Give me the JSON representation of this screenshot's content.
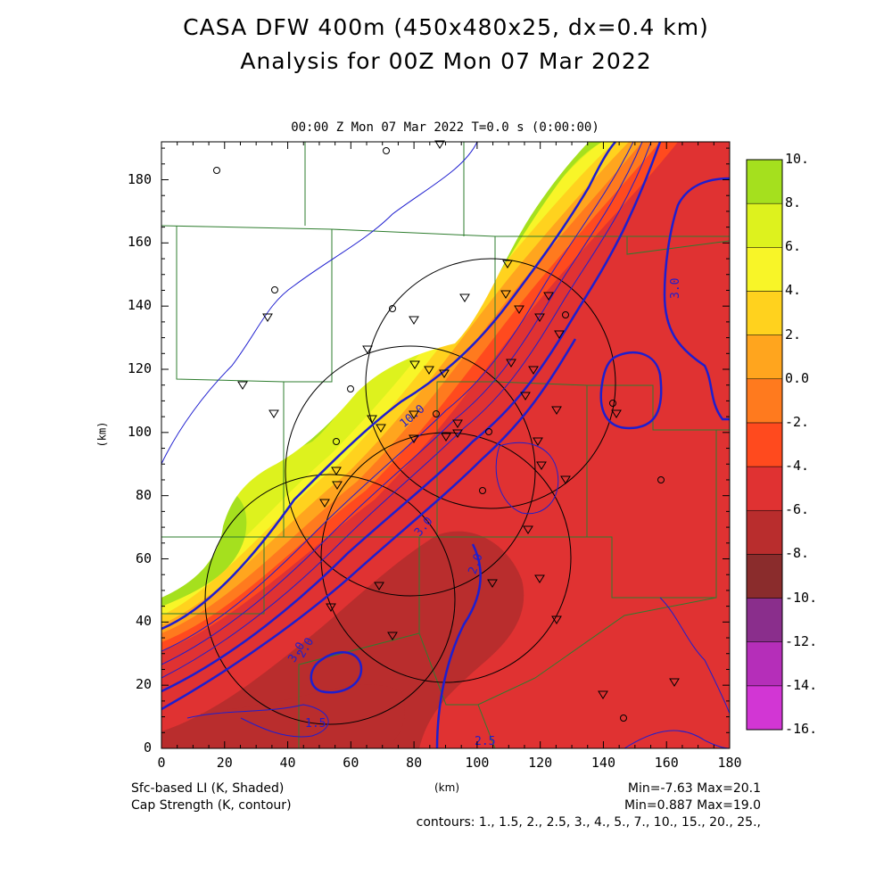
{
  "title_line1": "CASA DFW 400m (450x480x25, dx=0.4 km)",
  "title_line2": "Analysis for 00Z Mon 07 Mar 2022",
  "subtitle": "00:00 Z Mon 07 Mar 2022    T=0.0 s (0:00:00)",
  "axes": {
    "x_unit": "(km)",
    "y_unit": "(km)",
    "x_ticks": [
      "0",
      "20",
      "40",
      "60",
      "80",
      "100",
      "120",
      "140",
      "160",
      "180"
    ],
    "y_ticks": [
      "0",
      "20",
      "40",
      "60",
      "80",
      "100",
      "120",
      "140",
      "160",
      "180"
    ],
    "xlim": [
      0,
      180
    ],
    "ylim": [
      0,
      192
    ]
  },
  "colorbar": {
    "labels": [
      "10.",
      "8.",
      "6.",
      "4.",
      "2.",
      "0.0",
      "-2.",
      "-4.",
      "-6.",
      "-8.",
      "-10.",
      "-12.",
      "-14.",
      "-16."
    ],
    "colors": [
      "#a5e01e",
      "#ddf21e",
      "#f8f528",
      "#ffd21e",
      "#ffa51e",
      "#ff7a1e",
      "#ff4a1e",
      "#e03232",
      "#b92d2d",
      "#8a2c2c",
      "#8a2e8c",
      "#b52eb9",
      "#d236d4"
    ]
  },
  "footer": {
    "left1": "Sfc-based LI (K, Shaded)",
    "left2": "Cap Strength (K, contour)",
    "center": "(km)",
    "stats1": "Min=-7.63 Max=20.1",
    "stats2": "Min=0.887 Max=19.0",
    "contours": "contours: 1., 1.5, 2., 2.5, 3., 4., 5., 7., 10., 15., 20., 25.,"
  },
  "contour_labels": [
    "10.0",
    "3.0",
    "3.0",
    "2.0",
    "2.0",
    "3.0",
    "1.5",
    "2.5"
  ]
}
